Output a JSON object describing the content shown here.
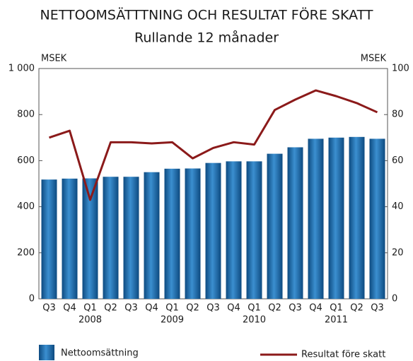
{
  "chart_data": {
    "type": "bar_line",
    "title": "NETTOOMSÄTTTNING OCH RESULTAT FÖRE SKATT",
    "subtitle": "Rullande 12 månader",
    "y_label": "MSEK",
    "y2_label": "MSEK",
    "categories": [
      "Q3",
      "Q4",
      "Q1",
      "Q2",
      "Q3",
      "Q4",
      "Q1",
      "Q2",
      "Q3",
      "Q4",
      "Q1",
      "Q2",
      "Q3",
      "Q4",
      "Q1",
      "Q2",
      "Q3"
    ],
    "categories2": [
      null,
      null,
      "2008",
      null,
      null,
      null,
      "2009",
      null,
      null,
      null,
      "2010",
      null,
      null,
      null,
      "2011",
      null,
      null
    ],
    "series": [
      {
        "name": "Nettoomsättning",
        "type": "bar",
        "color": "#1f6aa8",
        "values": [
          518,
          522,
          523,
          530,
          530,
          550,
          565,
          566,
          590,
          597,
          597,
          630,
          658,
          695,
          700,
          703,
          695
        ]
      },
      {
        "name": "Resultat före skatt",
        "type": "line",
        "axis": "y2",
        "color": "#8b1a1a",
        "values": [
          70,
          73,
          43,
          68,
          68,
          67.5,
          68,
          61,
          65.5,
          68,
          67,
          82,
          86.5,
          90.5,
          88,
          85,
          81
        ]
      }
    ],
    "ylim": [
      0,
      1000
    ],
    "yticks": [
      0,
      200,
      400,
      600,
      800,
      {
        "value": 1000,
        "label": "1 000"
      }
    ],
    "y2lim": [
      0,
      100
    ],
    "y2ticks": [
      0,
      20,
      40,
      60,
      80,
      100
    ]
  }
}
